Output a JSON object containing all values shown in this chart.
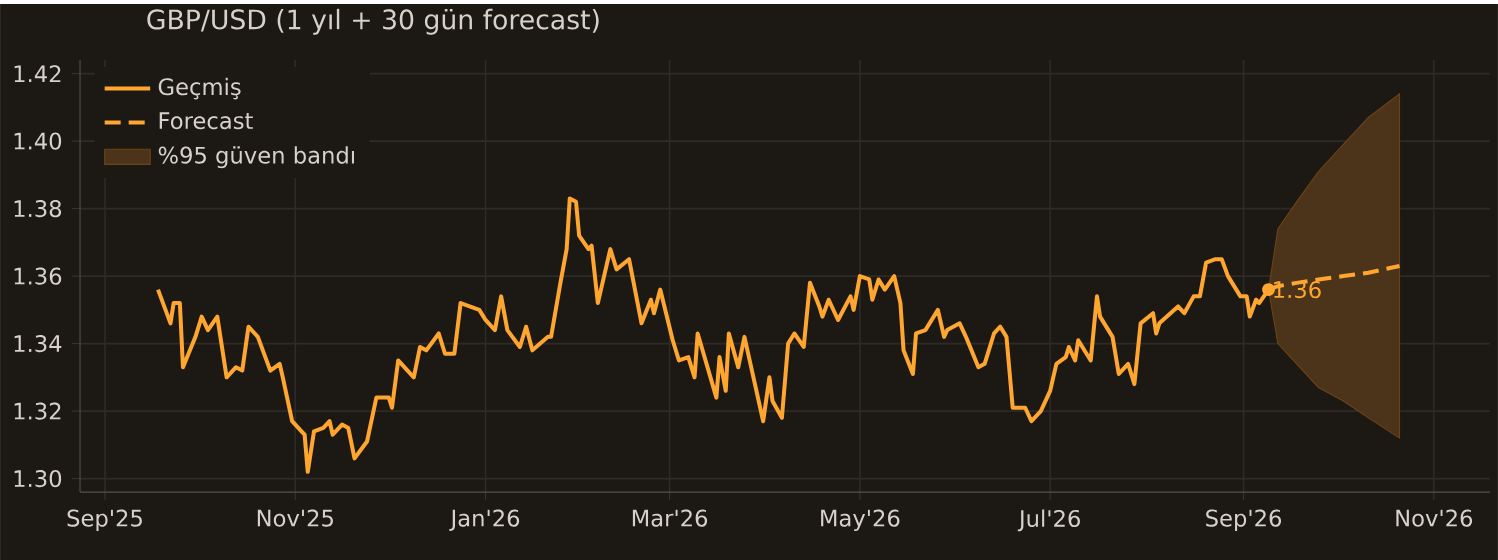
{
  "chart_data": {
    "type": "line",
    "title": "GBP/USD  (1 yıl + 30 gün forecast)",
    "xlim": [
      "2025-08-24",
      "2026-11-19"
    ],
    "ylim": [
      1.296,
      1.424
    ],
    "xticks": [
      {
        "value": "2025-09-01",
        "label": "Sep'25"
      },
      {
        "value": "2025-11-01",
        "label": "Nov'25"
      },
      {
        "value": "2026-01-01",
        "label": "Jan'26"
      },
      {
        "value": "2026-03-01",
        "label": "Mar'26"
      },
      {
        "value": "2026-05-01",
        "label": "May'26"
      },
      {
        "value": "2026-07-01",
        "label": "Jul'26"
      },
      {
        "value": "2026-09-01",
        "label": "Sep'26"
      },
      {
        "value": "2026-11-01",
        "label": "Nov'26"
      }
    ],
    "yticks": [
      {
        "value": 1.3,
        "label": "1.30"
      },
      {
        "value": 1.32,
        "label": "1.32"
      },
      {
        "value": 1.34,
        "label": "1.34"
      },
      {
        "value": 1.36,
        "label": "1.36"
      },
      {
        "value": 1.38,
        "label": "1.38"
      },
      {
        "value": 1.4,
        "label": "1.40"
      },
      {
        "value": 1.42,
        "label": "1.42"
      }
    ],
    "grid": true,
    "legend": "top left",
    "series": [
      {
        "name": "Geçmiş",
        "line_style": "solid",
        "color": "#ffa630",
        "x": [
          "2025-09-18",
          "2025-09-22",
          "2025-09-23",
          "2025-09-25",
          "2025-09-26",
          "2025-09-30",
          "2025-10-02",
          "2025-10-04",
          "2025-10-07",
          "2025-10-08",
          "2025-10-10",
          "2025-10-13",
          "2025-10-15",
          "2025-10-17",
          "2025-10-20",
          "2025-10-24",
          "2025-10-27",
          "2025-10-28",
          "2025-10-31",
          "2025-11-03",
          "2025-11-04",
          "2025-11-05",
          "2025-11-07",
          "2025-11-10",
          "2025-11-12",
          "2025-11-13",
          "2025-11-16",
          "2025-11-18",
          "2025-11-20",
          "2025-11-24",
          "2025-11-27",
          "2025-12-01",
          "2025-12-02",
          "2025-12-04",
          "2025-12-07",
          "2025-12-09",
          "2025-12-11",
          "2025-12-13",
          "2025-12-17",
          "2025-12-19",
          "2025-12-22",
          "2025-12-24",
          "2025-12-30",
          "2026-01-01",
          "2026-01-04",
          "2026-01-06",
          "2026-01-08",
          "2026-01-12",
          "2026-01-14",
          "2026-01-16",
          "2026-01-21",
          "2026-01-22",
          "2026-01-25",
          "2026-01-27",
          "2026-01-28",
          "2026-01-30",
          "2026-01-31",
          "2026-02-03",
          "2026-02-04",
          "2026-02-06",
          "2026-02-10",
          "2026-02-12",
          "2026-02-16",
          "2026-02-20",
          "2026-02-23",
          "2026-02-24",
          "2026-02-26",
          "2026-03-02",
          "2026-03-04",
          "2026-03-07",
          "2026-03-09",
          "2026-03-10",
          "2026-03-16",
          "2026-03-17",
          "2026-03-19",
          "2026-03-20",
          "2026-03-23",
          "2026-03-25",
          "2026-03-31",
          "2026-04-02",
          "2026-04-03",
          "2026-04-06",
          "2026-04-08",
          "2026-04-10",
          "2026-04-13",
          "2026-04-15",
          "2026-04-18",
          "2026-04-19",
          "2026-04-21",
          "2026-04-24",
          "2026-04-28",
          "2026-04-29",
          "2026-05-01",
          "2026-05-04",
          "2026-05-05",
          "2026-05-07",
          "2026-05-09",
          "2026-05-12",
          "2026-05-14",
          "2026-05-15",
          "2026-05-18",
          "2026-05-19",
          "2026-05-22",
          "2026-05-26",
          "2026-05-28",
          "2026-05-29",
          "2026-06-02",
          "2026-06-04",
          "2026-06-08",
          "2026-06-10",
          "2026-06-13",
          "2026-06-15",
          "2026-06-17",
          "2026-06-19",
          "2026-06-23",
          "2026-06-25",
          "2026-06-28",
          "2026-07-01",
          "2026-07-03",
          "2026-07-06",
          "2026-07-07",
          "2026-07-09",
          "2026-07-10",
          "2026-07-14",
          "2026-07-16",
          "2026-07-17",
          "2026-07-21",
          "2026-07-23",
          "2026-07-26",
          "2026-07-28",
          "2026-07-30",
          "2026-08-03",
          "2026-08-04",
          "2026-08-05",
          "2026-08-11",
          "2026-08-13",
          "2026-08-16",
          "2026-08-18",
          "2026-08-20",
          "2026-08-23",
          "2026-08-25",
          "2026-08-27",
          "2026-08-31",
          "2026-09-02",
          "2026-09-03",
          "2026-09-05",
          "2026-09-06",
          "2026-09-09"
        ],
        "values": [
          1.356,
          1.346,
          1.352,
          1.352,
          1.333,
          1.342,
          1.348,
          1.344,
          1.348,
          1.342,
          1.33,
          1.333,
          1.332,
          1.345,
          1.342,
          1.332,
          1.334,
          1.33,
          1.317,
          1.314,
          1.313,
          1.302,
          1.314,
          1.315,
          1.317,
          1.313,
          1.316,
          1.315,
          1.306,
          1.311,
          1.324,
          1.324,
          1.321,
          1.335,
          1.332,
          1.33,
          1.339,
          1.338,
          1.343,
          1.337,
          1.337,
          1.352,
          1.35,
          1.347,
          1.344,
          1.354,
          1.344,
          1.339,
          1.345,
          1.338,
          1.342,
          1.342,
          1.358,
          1.368,
          1.383,
          1.382,
          1.372,
          1.368,
          1.369,
          1.352,
          1.368,
          1.362,
          1.365,
          1.346,
          1.353,
          1.349,
          1.356,
          1.341,
          1.335,
          1.336,
          1.33,
          1.343,
          1.324,
          1.336,
          1.326,
          1.343,
          1.333,
          1.342,
          1.317,
          1.33,
          1.323,
          1.318,
          1.34,
          1.343,
          1.339,
          1.358,
          1.351,
          1.348,
          1.353,
          1.347,
          1.354,
          1.35,
          1.36,
          1.359,
          1.353,
          1.359,
          1.356,
          1.36,
          1.352,
          1.338,
          1.331,
          1.343,
          1.344,
          1.35,
          1.342,
          1.344,
          1.346,
          1.342,
          1.333,
          1.334,
          1.343,
          1.345,
          1.342,
          1.321,
          1.321,
          1.317,
          1.32,
          1.326,
          1.334,
          1.336,
          1.339,
          1.335,
          1.341,
          1.335,
          1.354,
          1.348,
          1.342,
          1.331,
          1.334,
          1.328,
          1.346,
          1.349,
          1.343,
          1.346,
          1.351,
          1.349,
          1.354,
          1.354,
          1.364,
          1.365,
          1.365,
          1.36,
          1.354,
          1.354,
          1.348,
          1.353,
          1.352,
          1.356
        ]
      },
      {
        "name": "Forecast",
        "line_style": "dashed",
        "color": "#ffa630",
        "x": [
          "2026-09-09",
          "2026-09-12",
          "2026-09-18",
          "2026-09-25",
          "2026-10-03",
          "2026-10-11",
          "2026-10-21"
        ],
        "values": [
          1.356,
          1.357,
          1.358,
          1.359,
          1.36,
          1.361,
          1.363
        ]
      },
      {
        "name": "%95 güven bandı",
        "type": "area",
        "color": "#4b3419",
        "x": [
          "2026-09-09",
          "2026-09-12",
          "2026-09-18",
          "2026-09-25",
          "2026-10-03",
          "2026-10-11",
          "2026-10-21"
        ],
        "values": [
          null,
          null,
          null,
          null,
          null,
          null,
          null
        ],
        "lower": [
          1.356,
          1.34,
          1.334,
          1.327,
          1.323,
          1.318,
          1.312
        ],
        "upper": [
          1.356,
          1.374,
          1.382,
          1.391,
          1.399,
          1.407,
          1.414
        ]
      }
    ],
    "annotations": [
      {
        "text": "1.36",
        "x": "2026-09-09",
        "y": 1.356
      }
    ]
  }
}
